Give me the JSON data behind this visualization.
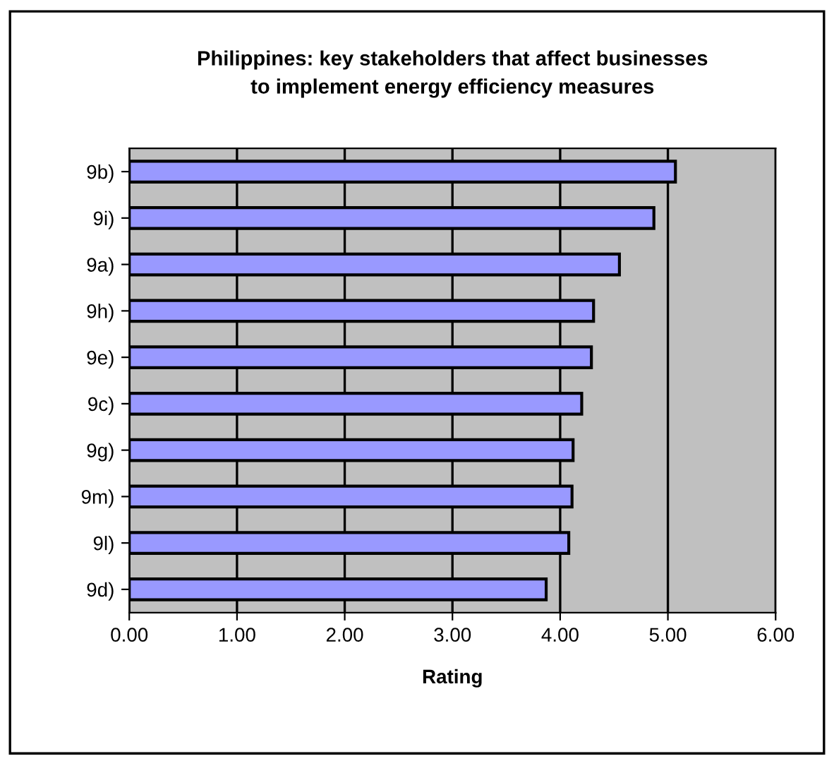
{
  "chart_data": {
    "type": "bar",
    "orientation": "horizontal",
    "title": "Philippines: key stakeholders that affect businesses\nto implement energy efficiency measures",
    "xlabel": "Rating",
    "categories": [
      "9b)",
      "9i)",
      "9a)",
      "9h)",
      "9e)",
      "9c)",
      "9g)",
      "9m)",
      "9l)",
      "9d)"
    ],
    "values": [
      5.07,
      4.87,
      4.55,
      4.31,
      4.29,
      4.2,
      4.12,
      4.11,
      4.08,
      3.87
    ],
    "color": "#9999ff",
    "xlim": [
      0,
      6
    ],
    "xticks": [
      {
        "value": 0,
        "label": "0.00"
      },
      {
        "value": 1,
        "label": "1.00"
      },
      {
        "value": 2,
        "label": "2.00"
      },
      {
        "value": 3,
        "label": "3.00"
      },
      {
        "value": 4,
        "label": "4.00"
      },
      {
        "value": 5,
        "label": "5.00"
      },
      {
        "value": 6,
        "label": "6.00"
      }
    ],
    "grid": "x"
  }
}
